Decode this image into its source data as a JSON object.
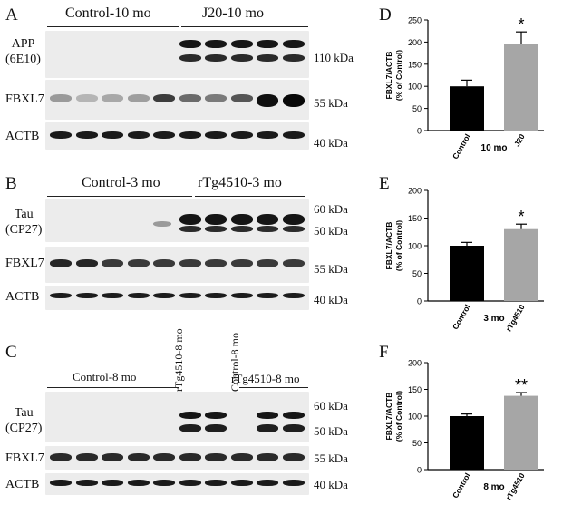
{
  "blots": {
    "A": {
      "panel_label": "A",
      "group_labels": [
        "Control-10 mo",
        "J20-10 mo"
      ],
      "row_labels": [
        "APP\n(6E10)",
        "FBXL7",
        "ACTB"
      ],
      "kda_labels": [
        "110 kDa",
        "55 kDa",
        "40 kDa"
      ]
    },
    "B": {
      "panel_label": "B",
      "group_labels": [
        "Control-3 mo",
        "rTg4510-3 mo"
      ],
      "row_labels": [
        "Tau\n(CP27)",
        "FBXL7",
        "ACTB"
      ],
      "kda_labels": [
        "60 kDa",
        "50 kDa",
        "55 kDa",
        "40 kDa"
      ]
    },
    "C": {
      "panel_label": "C",
      "group_labels": [
        "Control-8 mo",
        "rTg4510-8 mo",
        "Control-8 mo",
        "rTg4510-8 mo"
      ],
      "row_labels": [
        "Tau\n(CP27)",
        "FBXL7",
        "ACTB"
      ],
      "kda_labels": [
        "60 kDa",
        "50 kDa",
        "55 kDa",
        "40 kDa"
      ]
    }
  },
  "chart_data": [
    {
      "panel_label": "D",
      "type": "bar",
      "categories": [
        "Control",
        "J20"
      ],
      "values": [
        100,
        195
      ],
      "errors": [
        14,
        28
      ],
      "colors": [
        "#000000",
        "#a6a6a6"
      ],
      "significance": [
        "",
        "*"
      ],
      "xlabel": "10 mo",
      "ylabel": "FBXL7/ACTB\n(% of Control)",
      "ylim": [
        0,
        250
      ],
      "yticks": [
        0,
        50,
        100,
        150,
        200,
        250
      ]
    },
    {
      "panel_label": "E",
      "type": "bar",
      "categories": [
        "Control",
        "rTg4510"
      ],
      "values": [
        100,
        130
      ],
      "errors": [
        6,
        9
      ],
      "colors": [
        "#000000",
        "#a6a6a6"
      ],
      "significance": [
        "",
        "*"
      ],
      "xlabel": "3 mo",
      "ylabel": "FBXL7/ACTB\n(% of Control)",
      "ylim": [
        0,
        200
      ],
      "yticks": [
        0,
        50,
        100,
        150,
        200
      ]
    },
    {
      "panel_label": "F",
      "type": "bar",
      "categories": [
        "Control",
        "rTg4510"
      ],
      "values": [
        100,
        138
      ],
      "errors": [
        4,
        6
      ],
      "colors": [
        "#000000",
        "#a6a6a6"
      ],
      "significance": [
        "",
        "**"
      ],
      "xlabel": "8 mo",
      "ylabel": "FBXL7/ACTB\n(% of Control)",
      "ylim": [
        0,
        200
      ],
      "yticks": [
        0,
        50,
        100,
        150,
        200
      ]
    }
  ]
}
